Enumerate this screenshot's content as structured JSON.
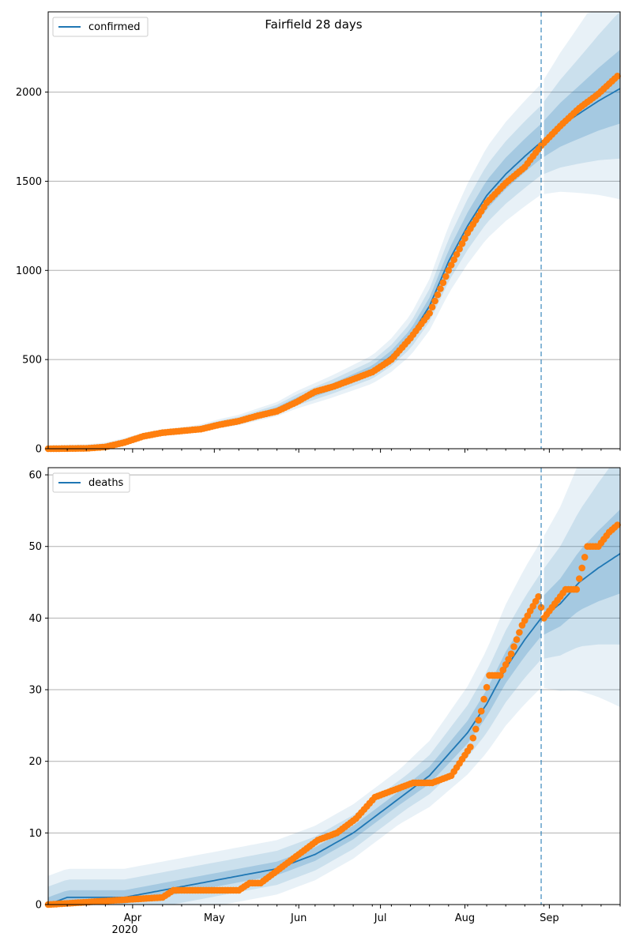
{
  "chart_data": [
    {
      "type": "line",
      "title": "Fairfield 28 days",
      "legend": [
        "confirmed"
      ],
      "legend_position": "top-left",
      "grid": "horizontal",
      "ylim": [
        0,
        2450
      ],
      "xlim": [
        "2020-03-01",
        "2020-09-27"
      ],
      "yticks": [
        0,
        500,
        1000,
        1500,
        2000
      ],
      "xtick_labels": [
        {
          "date": "2020-04-01",
          "label": ""
        },
        {
          "date": "2020-05-01",
          "label": ""
        },
        {
          "date": "2020-06-01",
          "label": ""
        },
        {
          "date": "2020-07-01",
          "label": ""
        },
        {
          "date": "2020-08-01",
          "label": ""
        },
        {
          "date": "2020-09-01",
          "label": ""
        }
      ],
      "forecast_start": "2020-08-29",
      "colors": {
        "model": "#1f77b4",
        "observed": "#ff7f0e",
        "band": "#1f77b4",
        "grid": "#b0b0b0"
      },
      "series": [
        {
          "name": "confirmed",
          "kind": "model",
          "x": [
            "2020-03-01",
            "2020-03-15",
            "2020-03-22",
            "2020-03-29",
            "2020-04-05",
            "2020-04-12",
            "2020-04-19",
            "2020-04-26",
            "2020-05-03",
            "2020-05-10",
            "2020-05-17",
            "2020-05-24",
            "2020-05-31",
            "2020-06-07",
            "2020-06-14",
            "2020-06-21",
            "2020-06-28",
            "2020-07-05",
            "2020-07-12",
            "2020-07-19",
            "2020-07-26",
            "2020-08-02",
            "2020-08-09",
            "2020-08-16",
            "2020-08-23",
            "2020-08-29",
            "2020-09-05",
            "2020-09-12",
            "2020-09-19",
            "2020-09-27"
          ],
          "values": [
            0,
            5,
            15,
            40,
            70,
            90,
            100,
            115,
            140,
            160,
            190,
            220,
            270,
            310,
            350,
            395,
            440,
            520,
            630,
            800,
            1050,
            1250,
            1420,
            1540,
            1640,
            1720,
            1810,
            1880,
            1950,
            2020
          ]
        },
        {
          "name": "",
          "kind": "observed",
          "x": [
            "2020-03-01",
            "2020-03-15",
            "2020-03-22",
            "2020-03-29",
            "2020-04-05",
            "2020-04-12",
            "2020-04-19",
            "2020-04-26",
            "2020-05-03",
            "2020-05-10",
            "2020-05-17",
            "2020-05-24",
            "2020-05-31",
            "2020-06-07",
            "2020-06-14",
            "2020-06-21",
            "2020-06-28",
            "2020-07-05",
            "2020-07-12",
            "2020-07-19",
            "2020-07-26",
            "2020-08-02",
            "2020-08-09",
            "2020-08-16",
            "2020-08-23",
            "2020-08-29",
            "2020-09-05",
            "2020-09-12",
            "2020-09-19",
            "2020-09-26"
          ],
          "values": [
            0,
            2,
            10,
            35,
            70,
            90,
            100,
            110,
            135,
            155,
            185,
            210,
            260,
            320,
            350,
            390,
            430,
            500,
            620,
            760,
            1000,
            1210,
            1380,
            1490,
            1580,
            1700,
            1810,
            1910,
            1990,
            2090
          ]
        }
      ]
    },
    {
      "type": "line",
      "title": "",
      "legend": [
        "deaths"
      ],
      "legend_position": "top-left",
      "grid": "horizontal",
      "ylim": [
        0,
        61
      ],
      "xlim": [
        "2020-03-01",
        "2020-09-27"
      ],
      "yticks": [
        0,
        10,
        20,
        30,
        40,
        50,
        60
      ],
      "xtick_labels": [
        {
          "date": "2020-04-01",
          "label": "Apr"
        },
        {
          "date": "2020-05-01",
          "label": "May"
        },
        {
          "date": "2020-06-01",
          "label": "Jun"
        },
        {
          "date": "2020-07-01",
          "label": "Jul"
        },
        {
          "date": "2020-08-01",
          "label": "Aug"
        },
        {
          "date": "2020-09-01",
          "label": "Sep"
        }
      ],
      "year_label": "2020",
      "forecast_start": "2020-08-29",
      "colors": {
        "model": "#1f77b4",
        "observed": "#ff7f0e",
        "band": "#1f77b4",
        "grid": "#b0b0b0"
      },
      "series": [
        {
          "name": "deaths",
          "kind": "model",
          "x": [
            "2020-03-01",
            "2020-03-08",
            "2020-03-29",
            "2020-04-12",
            "2020-04-26",
            "2020-05-10",
            "2020-05-24",
            "2020-06-07",
            "2020-06-21",
            "2020-07-05",
            "2020-07-19",
            "2020-08-02",
            "2020-08-09",
            "2020-08-16",
            "2020-08-23",
            "2020-08-29",
            "2020-09-05",
            "2020-09-12",
            "2020-09-19",
            "2020-09-27"
          ],
          "values": [
            0,
            1,
            1,
            2,
            3,
            4,
            5,
            7,
            10,
            14,
            18,
            24,
            28,
            33,
            37,
            40,
            42,
            45,
            47,
            49
          ]
        },
        {
          "name": "",
          "kind": "observed",
          "x": [
            "2020-03-01",
            "2020-04-12",
            "2020-04-16",
            "2020-05-10",
            "2020-05-14",
            "2020-05-18",
            "2020-06-01",
            "2020-06-08",
            "2020-06-15",
            "2020-06-22",
            "2020-06-29",
            "2020-07-06",
            "2020-07-13",
            "2020-07-20",
            "2020-07-27",
            "2020-08-03",
            "2020-08-07",
            "2020-08-10",
            "2020-08-14",
            "2020-08-18",
            "2020-08-22",
            "2020-08-28",
            "2020-08-30",
            "2020-09-03",
            "2020-09-07",
            "2020-09-11",
            "2020-09-15",
            "2020-09-19",
            "2020-09-23",
            "2020-09-26"
          ],
          "values": [
            0,
            1,
            2,
            2,
            3,
            3,
            7,
            9,
            10,
            12,
            15,
            16,
            17,
            17,
            18,
            22,
            27,
            32,
            32,
            35,
            39,
            43,
            40,
            42,
            44,
            44,
            50,
            50,
            52,
            53
          ]
        }
      ]
    }
  ]
}
